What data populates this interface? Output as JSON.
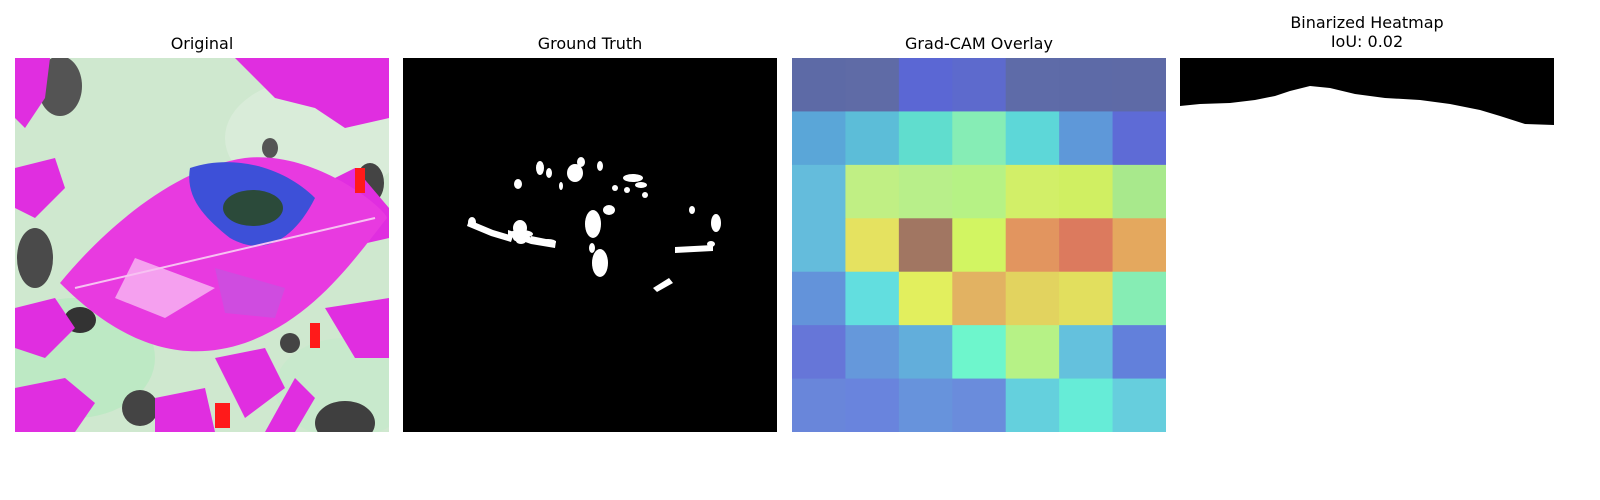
{
  "titles": {
    "original": "Original",
    "ground_truth": "Ground Truth",
    "gradcam": "Grad-CAM Overlay",
    "binarized": "Binarized Heatmap",
    "iou": "IoU: 0.02"
  },
  "gradcam_grid": [
    [
      "#5d6aa6",
      "#5f6ba6",
      "#5b67d4",
      "#5d6acd",
      "#5e6ba8",
      "#5d6aa7",
      "#5e6aa6"
    ],
    [
      "#5aa6d8",
      "#5cbdd8",
      "#60ddce",
      "#86edb5",
      "#5dd7d8",
      "#5e98d9",
      "#5e6bd6"
    ],
    [
      "#64bcdc",
      "#c0ef84",
      "#b8ef8a",
      "#b6f285",
      "#d2ef68",
      "#d0ef62",
      "#a8e98c"
    ],
    [
      "#64bcdc",
      "#e5e260",
      "#a17662",
      "#d2f562",
      "#e2955f",
      "#dc7a5e",
      "#e4a85e"
    ],
    [
      "#6393da",
      "#62dedf",
      "#e2ef5e",
      "#e2b262",
      "#e2d35f",
      "#e2df5e",
      "#86edb4"
    ],
    [
      "#6676d8",
      "#6598db",
      "#62aedb",
      "#6ef6cc",
      "#b6f286",
      "#64c1dd",
      "#6280db"
    ],
    [
      "#6986da",
      "#6984dd",
      "#6793dc",
      "#6a8cdc",
      "#64d0dd",
      "#66ecd7",
      "#66cedd"
    ]
  ]
}
